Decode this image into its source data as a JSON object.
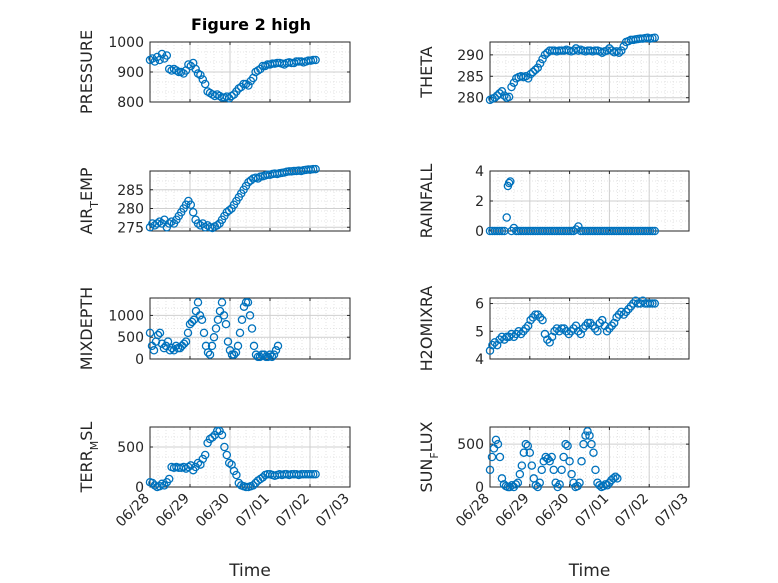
{
  "figure": {
    "title": "Figure 2 high"
  },
  "chart_data": [
    {
      "type": "scatter",
      "ylabel_main": "PRESSURE",
      "ylabel_sub": "",
      "ylim": [
        800,
        1000
      ],
      "yticks": [
        800,
        900,
        1000
      ],
      "xlim": [
        0,
        5
      ],
      "xticks": [],
      "x": [
        0.0,
        0.06,
        0.12,
        0.18,
        0.24,
        0.3,
        0.36,
        0.42,
        0.48,
        0.54,
        0.6,
        0.66,
        0.72,
        0.78,
        0.84,
        0.9,
        0.96,
        1.02,
        1.08,
        1.14,
        1.2,
        1.26,
        1.32,
        1.38,
        1.44,
        1.5,
        1.56,
        1.62,
        1.68,
        1.74,
        1.8,
        1.86,
        1.92,
        1.98,
        2.04,
        2.1,
        2.16,
        2.22,
        2.28,
        2.34,
        2.4,
        2.46,
        2.52,
        2.58,
        2.64,
        2.7,
        2.76,
        2.82,
        2.88,
        2.94,
        3.0,
        3.06,
        3.12,
        3.18,
        3.24,
        3.3,
        3.36,
        3.42,
        3.48,
        3.54,
        3.6,
        3.66,
        3.72,
        3.78,
        3.84,
        3.9,
        3.96,
        4.02,
        4.08,
        4.14
      ],
      "y": [
        940,
        945,
        935,
        950,
        940,
        960,
        945,
        955,
        910,
        905,
        910,
        905,
        900,
        900,
        895,
        905,
        925,
        920,
        930,
        910,
        895,
        890,
        875,
        860,
        835,
        830,
        825,
        820,
        825,
        820,
        815,
        815,
        818,
        812,
        820,
        825,
        835,
        845,
        850,
        860,
        860,
        855,
        870,
        880,
        900,
        905,
        910,
        920,
        920,
        925,
        925,
        928,
        928,
        930,
        930,
        928,
        925,
        930,
        932,
        930,
        930,
        935,
        935,
        935,
        932,
        935,
        938,
        938,
        940,
        940
      ],
      "xlabel": "",
      "time_axis": false
    },
    {
      "type": "scatter",
      "ylabel_main": "THETA",
      "ylabel_sub": "",
      "ylim": [
        279,
        293
      ],
      "yticks": [
        280,
        285,
        290
      ],
      "xlim": [
        0,
        5
      ],
      "xticks": [],
      "x": [
        0.0,
        0.06,
        0.12,
        0.18,
        0.24,
        0.3,
        0.36,
        0.42,
        0.48,
        0.54,
        0.6,
        0.66,
        0.72,
        0.78,
        0.84,
        0.9,
        0.96,
        1.02,
        1.08,
        1.14,
        1.2,
        1.26,
        1.32,
        1.38,
        1.44,
        1.5,
        1.56,
        1.62,
        1.68,
        1.74,
        1.8,
        1.86,
        1.92,
        1.98,
        2.04,
        2.1,
        2.16,
        2.22,
        2.28,
        2.34,
        2.4,
        2.46,
        2.52,
        2.58,
        2.64,
        2.7,
        2.76,
        2.82,
        2.88,
        2.94,
        3.0,
        3.06,
        3.12,
        3.18,
        3.24,
        3.3,
        3.36,
        3.42,
        3.48,
        3.54,
        3.6,
        3.66,
        3.72,
        3.78,
        3.84,
        3.9,
        3.96,
        4.02,
        4.08,
        4.14
      ],
      "y": [
        279.5,
        279.8,
        280,
        280.5,
        281,
        281.5,
        280.5,
        280,
        280.2,
        282.5,
        283.5,
        284.5,
        284.8,
        285,
        284.8,
        285,
        284.5,
        285.5,
        286,
        286.5,
        287,
        288,
        289,
        290,
        290.5,
        291,
        291,
        291,
        290.8,
        291,
        291,
        291,
        291.2,
        291,
        290.8,
        291,
        291.5,
        291,
        291.2,
        291,
        290.8,
        291,
        291,
        290.8,
        291,
        291,
        290.8,
        290.5,
        290.8,
        291,
        291.5,
        291,
        290.6,
        290.8,
        290.5,
        291,
        292,
        293,
        293.2,
        293.5,
        293.5,
        293.6,
        293.7,
        293.8,
        293.8,
        293.9,
        294,
        293.8,
        293.9,
        294
      ],
      "xlabel": "",
      "time_axis": false
    },
    {
      "type": "scatter",
      "ylabel_main": "AIR",
      "ylabel_sub": "T",
      "ylabel_after": "EMP",
      "ylim": [
        274,
        290
      ],
      "yticks": [
        275,
        280,
        285
      ],
      "xlim": [
        0,
        5
      ],
      "xticks": [],
      "x": [
        0.0,
        0.06,
        0.12,
        0.18,
        0.24,
        0.3,
        0.36,
        0.42,
        0.48,
        0.54,
        0.6,
        0.66,
        0.72,
        0.78,
        0.84,
        0.9,
        0.96,
        1.02,
        1.08,
        1.14,
        1.2,
        1.26,
        1.32,
        1.38,
        1.44,
        1.5,
        1.56,
        1.62,
        1.68,
        1.74,
        1.8,
        1.86,
        1.92,
        1.98,
        2.04,
        2.1,
        2.16,
        2.22,
        2.28,
        2.34,
        2.4,
        2.46,
        2.52,
        2.58,
        2.64,
        2.7,
        2.76,
        2.82,
        2.88,
        2.94,
        3.0,
        3.06,
        3.12,
        3.18,
        3.24,
        3.3,
        3.36,
        3.42,
        3.48,
        3.54,
        3.6,
        3.66,
        3.72,
        3.78,
        3.84,
        3.9,
        3.96,
        4.02,
        4.08,
        4.14
      ],
      "y": [
        275,
        276,
        275.5,
        276,
        276.5,
        276,
        277,
        275,
        276,
        276.5,
        276,
        277,
        278,
        279,
        280,
        281,
        282,
        281,
        279,
        277,
        276,
        275.5,
        276,
        275,
        275.5,
        275,
        274.8,
        275.2,
        275.5,
        276,
        277,
        278,
        279,
        279.5,
        280,
        281,
        282,
        283,
        284,
        285,
        286,
        287,
        287.5,
        288,
        288.2,
        288,
        288.5,
        288.6,
        288.8,
        289,
        289,
        289.2,
        289.3,
        289.2,
        289.4,
        289.5,
        289.6,
        289.8,
        289.9,
        289.9,
        290,
        290,
        290.1,
        290,
        290.2,
        290.3,
        290.4,
        290.4,
        290.5,
        290.5
      ],
      "xlabel": "",
      "time_axis": false
    },
    {
      "type": "scatter",
      "ylabel_main": "RAINFALL",
      "ylabel_sub": "",
      "ylim": [
        0,
        4
      ],
      "yticks": [
        0,
        2,
        4
      ],
      "xlim": [
        0,
        5
      ],
      "xticks": [],
      "x": [
        0.0,
        0.06,
        0.12,
        0.18,
        0.24,
        0.3,
        0.36,
        0.42,
        0.45,
        0.48,
        0.51,
        0.54,
        0.6,
        0.66,
        0.72,
        0.78,
        0.84,
        0.9,
        0.96,
        1.02,
        1.08,
        1.14,
        1.2,
        1.26,
        1.32,
        1.38,
        1.44,
        1.5,
        1.56,
        1.62,
        1.68,
        1.74,
        1.8,
        1.86,
        1.92,
        1.98,
        2.04,
        2.1,
        2.16,
        2.22,
        2.28,
        2.34,
        2.4,
        2.46,
        2.52,
        2.58,
        2.64,
        2.7,
        2.76,
        2.82,
        2.88,
        2.94,
        3.0,
        3.06,
        3.12,
        3.18,
        3.24,
        3.3,
        3.36,
        3.42,
        3.48,
        3.54,
        3.6,
        3.66,
        3.72,
        3.78,
        3.84,
        3.9,
        3.96,
        4.02,
        4.08,
        4.14
      ],
      "y": [
        0,
        0,
        0,
        0,
        0,
        0,
        0,
        0.9,
        3.0,
        3.2,
        3.3,
        0,
        0.2,
        0,
        0,
        0,
        0,
        0,
        0,
        0,
        0,
        0,
        0,
        0,
        0,
        0,
        0,
        0,
        0,
        0,
        0,
        0,
        0,
        0,
        0,
        0,
        0,
        0,
        0.1,
        0.3,
        0,
        0,
        0,
        0,
        0,
        0,
        0,
        0,
        0,
        0,
        0,
        0,
        0,
        0,
        0,
        0,
        0,
        0,
        0,
        0,
        0,
        0,
        0,
        0,
        0,
        0,
        0,
        0,
        0,
        0,
        0,
        0
      ],
      "xlabel": "",
      "time_axis": false
    },
    {
      "type": "scatter",
      "ylabel_main": "MIXDEPTH",
      "ylabel_sub": "",
      "ylim": [
        0,
        1400
      ],
      "yticks": [
        0,
        500,
        1000
      ],
      "xlim": [
        0,
        5
      ],
      "xticks": [],
      "x": [
        0.0,
        0.05,
        0.1,
        0.15,
        0.2,
        0.25,
        0.3,
        0.35,
        0.4,
        0.45,
        0.5,
        0.55,
        0.6,
        0.65,
        0.7,
        0.75,
        0.8,
        0.85,
        0.9,
        0.95,
        1.0,
        1.05,
        1.1,
        1.15,
        1.2,
        1.25,
        1.3,
        1.35,
        1.4,
        1.45,
        1.5,
        1.55,
        1.6,
        1.65,
        1.7,
        1.75,
        1.8,
        1.85,
        1.9,
        1.95,
        2.0,
        2.05,
        2.1,
        2.15,
        2.2,
        2.25,
        2.3,
        2.35,
        2.4,
        2.45,
        2.5,
        2.55,
        2.6,
        2.65,
        2.7,
        2.75,
        2.8,
        2.85,
        2.9,
        2.95,
        3.0,
        3.05,
        3.1,
        3.15,
        3.2
      ],
      "y": [
        600,
        300,
        200,
        400,
        550,
        600,
        350,
        250,
        300,
        400,
        200,
        250,
        200,
        300,
        250,
        250,
        300,
        350,
        400,
        600,
        800,
        850,
        900,
        1100,
        1300,
        1000,
        900,
        600,
        300,
        150,
        100,
        300,
        500,
        700,
        900,
        1100,
        1300,
        1000,
        800,
        400,
        200,
        100,
        100,
        150,
        300,
        600,
        900,
        1200,
        1300,
        1300,
        1000,
        700,
        300,
        100,
        50,
        50,
        100,
        100,
        50,
        50,
        100,
        50,
        100,
        200,
        300
      ],
      "xlabel": "",
      "time_axis": false
    },
    {
      "type": "scatter",
      "ylabel_main": "H2OMIXRA",
      "ylabel_sub": "",
      "ylim": [
        4,
        6.2
      ],
      "yticks": [
        4,
        5,
        6
      ],
      "xlim": [
        0,
        5
      ],
      "xticks": [],
      "x": [
        0.0,
        0.06,
        0.12,
        0.18,
        0.24,
        0.3,
        0.36,
        0.42,
        0.48,
        0.54,
        0.6,
        0.66,
        0.72,
        0.78,
        0.84,
        0.9,
        0.96,
        1.02,
        1.08,
        1.14,
        1.2,
        1.26,
        1.32,
        1.38,
        1.44,
        1.5,
        1.56,
        1.62,
        1.68,
        1.74,
        1.8,
        1.86,
        1.92,
        1.98,
        2.04,
        2.1,
        2.16,
        2.22,
        2.28,
        2.34,
        2.4,
        2.46,
        2.52,
        2.58,
        2.64,
        2.7,
        2.76,
        2.82,
        2.88,
        2.94,
        3.0,
        3.06,
        3.12,
        3.18,
        3.24,
        3.3,
        3.36,
        3.42,
        3.48,
        3.54,
        3.6,
        3.66,
        3.72,
        3.78,
        3.84,
        3.9,
        3.96,
        4.02,
        4.08,
        4.14
      ],
      "y": [
        4.3,
        4.5,
        4.6,
        4.5,
        4.7,
        4.8,
        4.7,
        4.8,
        4.8,
        4.9,
        4.8,
        4.9,
        5.0,
        4.9,
        5.0,
        5.1,
        5.2,
        5.4,
        5.5,
        5.6,
        5.6,
        5.5,
        5.4,
        4.9,
        4.7,
        4.6,
        4.8,
        5.0,
        5.1,
        5.0,
        5.1,
        5.1,
        5.0,
        4.9,
        5.0,
        5.1,
        5.2,
        5.0,
        4.9,
        5.1,
        5.2,
        5.3,
        5.3,
        5.2,
        5.1,
        5.0,
        5.3,
        5.4,
        5.2,
        5.0,
        5.1,
        5.2,
        5.3,
        5.5,
        5.6,
        5.7,
        5.6,
        5.7,
        5.8,
        5.9,
        6.0,
        6.1,
        6.0,
        6.0,
        6.1,
        6.0,
        6.0,
        6.0,
        6.0,
        6.0
      ],
      "xlabel": "",
      "time_axis": false
    },
    {
      "type": "scatter",
      "ylabel_main": "TERR",
      "ylabel_sub": "M",
      "ylabel_after": "SL",
      "ylim": [
        0,
        750
      ],
      "yticks": [
        0,
        500
      ],
      "xlim": [
        0,
        5
      ],
      "xticks": [
        "06/28",
        "06/29",
        "06/30",
        "07/01",
        "07/02",
        "07/03"
      ],
      "x": [
        0.0,
        0.06,
        0.12,
        0.18,
        0.24,
        0.3,
        0.36,
        0.42,
        0.48,
        0.54,
        0.6,
        0.66,
        0.72,
        0.78,
        0.84,
        0.9,
        0.96,
        1.02,
        1.08,
        1.14,
        1.2,
        1.26,
        1.32,
        1.38,
        1.44,
        1.5,
        1.56,
        1.62,
        1.68,
        1.74,
        1.8,
        1.86,
        1.92,
        1.98,
        2.04,
        2.1,
        2.16,
        2.22,
        2.28,
        2.34,
        2.4,
        2.46,
        2.52,
        2.58,
        2.64,
        2.7,
        2.76,
        2.82,
        2.88,
        2.94,
        3.0,
        3.06,
        3.12,
        3.18,
        3.24,
        3.3,
        3.36,
        3.42,
        3.48,
        3.54,
        3.6,
        3.66,
        3.72,
        3.78,
        3.84,
        3.9,
        3.96,
        4.02,
        4.08,
        4.14
      ],
      "y": [
        60,
        50,
        20,
        0,
        10,
        40,
        20,
        60,
        100,
        250,
        240,
        250,
        240,
        240,
        250,
        230,
        250,
        270,
        210,
        250,
        300,
        280,
        350,
        400,
        550,
        600,
        620,
        650,
        700,
        700,
        650,
        500,
        400,
        300,
        280,
        200,
        150,
        50,
        20,
        10,
        0,
        0,
        10,
        20,
        50,
        80,
        100,
        120,
        150,
        160,
        160,
        150,
        140,
        150,
        160,
        150,
        160,
        160,
        150,
        160,
        160,
        160,
        150,
        160,
        160,
        160,
        160,
        160,
        160,
        160
      ],
      "xlabel": "Time",
      "time_axis": true
    },
    {
      "type": "scatter",
      "ylabel_main": "SUN",
      "ylabel_sub": "F",
      "ylabel_after": "LUX",
      "ylim": [
        0,
        700
      ],
      "yticks": [
        0,
        500
      ],
      "xlim": [
        0,
        5
      ],
      "xticks": [
        "06/28",
        "06/29",
        "06/30",
        "07/01",
        "07/02",
        "07/03"
      ],
      "x": [
        0.0,
        0.05,
        0.1,
        0.15,
        0.2,
        0.25,
        0.3,
        0.35,
        0.4,
        0.45,
        0.5,
        0.55,
        0.6,
        0.65,
        0.7,
        0.75,
        0.8,
        0.85,
        0.9,
        0.95,
        1.0,
        1.05,
        1.1,
        1.15,
        1.2,
        1.25,
        1.3,
        1.35,
        1.4,
        1.45,
        1.5,
        1.55,
        1.6,
        1.65,
        1.7,
        1.75,
        1.8,
        1.85,
        1.9,
        1.95,
        2.0,
        2.05,
        2.1,
        2.15,
        2.2,
        2.25,
        2.3,
        2.35,
        2.4,
        2.45,
        2.5,
        2.55,
        2.6,
        2.65,
        2.7,
        2.75,
        2.8,
        2.85,
        2.9,
        2.95,
        3.0,
        3.05,
        3.1,
        3.15,
        3.2
      ],
      "y": [
        200,
        350,
        450,
        550,
        500,
        350,
        100,
        30,
        10,
        0,
        0,
        20,
        0,
        30,
        50,
        150,
        250,
        400,
        500,
        480,
        400,
        250,
        100,
        20,
        0,
        50,
        200,
        300,
        350,
        330,
        300,
        350,
        200,
        50,
        0,
        30,
        200,
        350,
        500,
        480,
        300,
        150,
        50,
        0,
        10,
        50,
        300,
        500,
        600,
        650,
        600,
        500,
        400,
        200,
        50,
        20,
        0,
        10,
        30,
        20,
        50,
        80,
        100,
        120,
        100
      ],
      "xlabel": "Time",
      "time_axis": true
    }
  ],
  "colors": {
    "marker": "#0072BD",
    "axis": "#262626",
    "grid": "#dcdcdc"
  }
}
